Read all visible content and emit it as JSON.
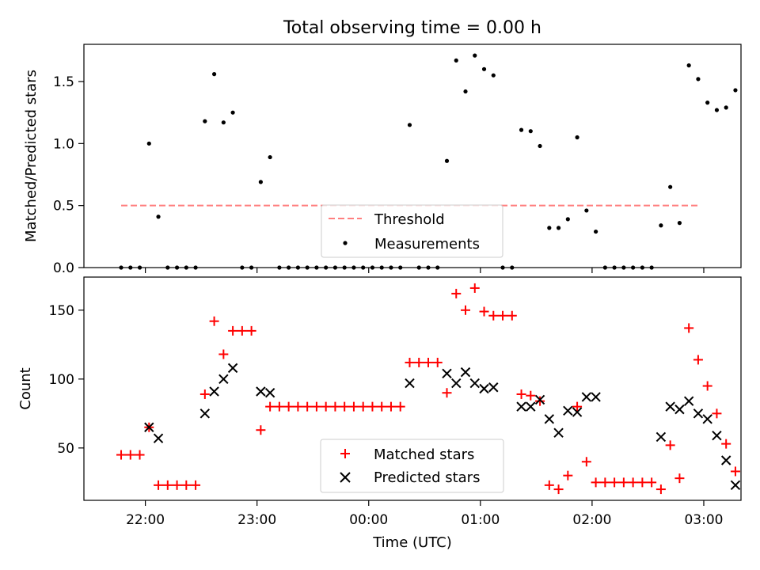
{
  "figure": {
    "title": "Total observing time = 0.00 h"
  },
  "chart_data": [
    {
      "type": "scatter",
      "title": "Total observing time = 0.00 h",
      "xlabel": "",
      "ylabel": "Matched/Predicted stars",
      "x_unit": "minutes (time of day, UTC)",
      "xlim": [
        "21:27",
        "03:20"
      ],
      "ylim": [
        0,
        1.8
      ],
      "yticks": [
        0.0,
        0.5,
        1.0,
        1.5
      ],
      "ytick_labels": [
        "0.0",
        "0.5",
        "1.0",
        "1.5"
      ],
      "xticks": [
        "22:00",
        "23:00",
        "00:00",
        "01:00",
        "02:00",
        "03:00"
      ],
      "grid": false,
      "legend": {
        "placement": "lower center",
        "entries": [
          "Threshold",
          "Measurements"
        ]
      },
      "colors": {
        "threshold": "#ff7f7f",
        "measurements": "#000000"
      },
      "threshold": {
        "name": "Threshold",
        "y": 0.5,
        "x_start": "21:47",
        "x_end": "02:58"
      },
      "series": [
        {
          "name": "Measurements",
          "marker": "dot",
          "points": [
            [
              "21:47",
              0.0
            ],
            [
              "21:52",
              0.0
            ],
            [
              "21:57",
              0.0
            ],
            [
              "22:02",
              1.0
            ],
            [
              "22:07",
              0.41
            ],
            [
              "22:12",
              0.0
            ],
            [
              "22:17",
              0.0
            ],
            [
              "22:22",
              0.0
            ],
            [
              "22:27",
              0.0
            ],
            [
              "22:32",
              1.18
            ],
            [
              "22:37",
              1.56
            ],
            [
              "22:42",
              1.17
            ],
            [
              "22:47",
              1.25
            ],
            [
              "22:52",
              0.0
            ],
            [
              "22:57",
              0.0
            ],
            [
              "23:02",
              0.69
            ],
            [
              "23:07",
              0.89
            ],
            [
              "23:12",
              0.0
            ],
            [
              "23:17",
              0.0
            ],
            [
              "23:22",
              0.0
            ],
            [
              "23:27",
              0.0
            ],
            [
              "23:32",
              0.0
            ],
            [
              "23:37",
              0.0
            ],
            [
              "23:42",
              0.0
            ],
            [
              "23:47",
              0.0
            ],
            [
              "23:52",
              0.0
            ],
            [
              "23:57",
              0.0
            ],
            [
              "00:02",
              0.0
            ],
            [
              "00:07",
              0.0
            ],
            [
              "00:12",
              0.0
            ],
            [
              "00:17",
              0.0
            ],
            [
              "00:22",
              1.15
            ],
            [
              "00:27",
              0.0
            ],
            [
              "00:32",
              0.0
            ],
            [
              "00:37",
              0.0
            ],
            [
              "00:42",
              0.86
            ],
            [
              "00:47",
              1.67
            ],
            [
              "00:52",
              1.42
            ],
            [
              "00:57",
              1.71
            ],
            [
              "01:02",
              1.6
            ],
            [
              "01:07",
              1.55
            ],
            [
              "01:12",
              0.0
            ],
            [
              "01:17",
              0.0
            ],
            [
              "01:22",
              1.11
            ],
            [
              "01:27",
              1.1
            ],
            [
              "01:32",
              0.98
            ],
            [
              "01:37",
              0.32
            ],
            [
              "01:42",
              0.32
            ],
            [
              "01:47",
              0.39
            ],
            [
              "01:52",
              1.05
            ],
            [
              "01:57",
              0.46
            ],
            [
              "02:02",
              0.29
            ],
            [
              "02:07",
              0.0
            ],
            [
              "02:12",
              0.0
            ],
            [
              "02:17",
              0.0
            ],
            [
              "02:22",
              0.0
            ],
            [
              "02:27",
              0.0
            ],
            [
              "02:32",
              0.0
            ],
            [
              "02:37",
              0.34
            ],
            [
              "02:42",
              0.65
            ],
            [
              "02:47",
              0.36
            ],
            [
              "02:52",
              1.63
            ],
            [
              "02:57",
              1.52
            ],
            [
              "03:02",
              1.33
            ],
            [
              "03:07",
              1.27
            ],
            [
              "03:12",
              1.29
            ],
            [
              "03:17",
              1.43
            ]
          ]
        }
      ]
    },
    {
      "type": "scatter",
      "title": "",
      "xlabel": "Time (UTC)",
      "ylabel": "Count",
      "x_unit": "minutes (time of day, UTC)",
      "xlim": [
        "21:27",
        "03:20"
      ],
      "ylim": [
        12,
        174
      ],
      "yticks": [
        50,
        100,
        150
      ],
      "ytick_labels": [
        "50",
        "100",
        "150"
      ],
      "xticks": [
        "22:00",
        "23:00",
        "00:00",
        "01:00",
        "02:00",
        "03:00"
      ],
      "xtick_labels": [
        "22:00",
        "23:00",
        "00:00",
        "01:00",
        "02:00",
        "03:00"
      ],
      "grid": false,
      "legend": {
        "placement": "lower center",
        "entries": [
          "Matched stars",
          "Predicted stars"
        ]
      },
      "colors": {
        "matched": "#ff0000",
        "predicted": "#000000"
      },
      "series": [
        {
          "name": "Matched stars",
          "marker": "plus",
          "points": [
            [
              "21:47",
              45
            ],
            [
              "21:52",
              45
            ],
            [
              "21:57",
              45
            ],
            [
              "22:02",
              65
            ],
            [
              "22:07",
              23
            ],
            [
              "22:12",
              23
            ],
            [
              "22:17",
              23
            ],
            [
              "22:22",
              23
            ],
            [
              "22:27",
              23
            ],
            [
              "22:32",
              89
            ],
            [
              "22:37",
              142
            ],
            [
              "22:42",
              118
            ],
            [
              "22:47",
              135
            ],
            [
              "22:52",
              135
            ],
            [
              "22:57",
              135
            ],
            [
              "23:02",
              63
            ],
            [
              "23:07",
              80
            ],
            [
              "23:12",
              80
            ],
            [
              "23:17",
              80
            ],
            [
              "23:22",
              80
            ],
            [
              "23:27",
              80
            ],
            [
              "23:32",
              80
            ],
            [
              "23:37",
              80
            ],
            [
              "23:42",
              80
            ],
            [
              "23:47",
              80
            ],
            [
              "23:52",
              80
            ],
            [
              "23:57",
              80
            ],
            [
              "00:02",
              80
            ],
            [
              "00:07",
              80
            ],
            [
              "00:12",
              80
            ],
            [
              "00:17",
              80
            ],
            [
              "00:22",
              112
            ],
            [
              "00:27",
              112
            ],
            [
              "00:32",
              112
            ],
            [
              "00:37",
              112
            ],
            [
              "00:42",
              90
            ],
            [
              "00:47",
              162
            ],
            [
              "00:52",
              150
            ],
            [
              "00:57",
              166
            ],
            [
              "01:02",
              149
            ],
            [
              "01:07",
              146
            ],
            [
              "01:12",
              146
            ],
            [
              "01:17",
              146
            ],
            [
              "01:22",
              89
            ],
            [
              "01:27",
              88
            ],
            [
              "01:32",
              84
            ],
            [
              "01:37",
              23
            ],
            [
              "01:42",
              20
            ],
            [
              "01:47",
              30
            ],
            [
              "01:52",
              80
            ],
            [
              "01:57",
              40
            ],
            [
              "02:02",
              25
            ],
            [
              "02:07",
              25
            ],
            [
              "02:12",
              25
            ],
            [
              "02:17",
              25
            ],
            [
              "02:22",
              25
            ],
            [
              "02:27",
              25
            ],
            [
              "02:32",
              25
            ],
            [
              "02:37",
              20
            ],
            [
              "02:42",
              52
            ],
            [
              "02:47",
              28
            ],
            [
              "02:52",
              137
            ],
            [
              "02:57",
              114
            ],
            [
              "03:02",
              95
            ],
            [
              "03:07",
              75
            ],
            [
              "03:12",
              53
            ],
            [
              "03:17",
              33
            ]
          ]
        },
        {
          "name": "Predicted stars",
          "marker": "x",
          "points": [
            [
              "22:02",
              65
            ],
            [
              "22:07",
              57
            ],
            [
              "22:32",
              75
            ],
            [
              "22:37",
              91
            ],
            [
              "22:42",
              100
            ],
            [
              "22:47",
              108
            ],
            [
              "23:02",
              91
            ],
            [
              "23:07",
              90
            ],
            [
              "00:22",
              97
            ],
            [
              "00:42",
              104
            ],
            [
              "00:47",
              97
            ],
            [
              "00:52",
              105
            ],
            [
              "00:57",
              97
            ],
            [
              "01:02",
              93
            ],
            [
              "01:07",
              94
            ],
            [
              "01:22",
              80
            ],
            [
              "01:27",
              80
            ],
            [
              "01:32",
              85
            ],
            [
              "01:37",
              71
            ],
            [
              "01:42",
              61
            ],
            [
              "01:47",
              77
            ],
            [
              "01:52",
              76
            ],
            [
              "01:57",
              87
            ],
            [
              "02:02",
              87
            ],
            [
              "02:37",
              58
            ],
            [
              "02:42",
              80
            ],
            [
              "02:47",
              78
            ],
            [
              "02:52",
              84
            ],
            [
              "02:57",
              75
            ],
            [
              "03:02",
              71
            ],
            [
              "03:07",
              59
            ],
            [
              "03:12",
              41
            ],
            [
              "03:17",
              23
            ]
          ]
        }
      ]
    }
  ]
}
